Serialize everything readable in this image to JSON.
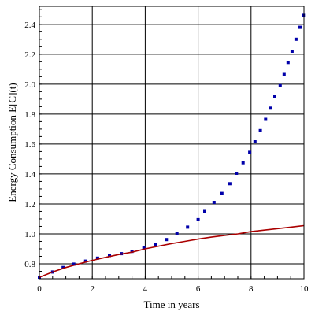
{
  "chart_data": {
    "type": "line",
    "xlabel": "Time in years",
    "ylabel": "Energy Consumption E[C](t)",
    "xlim": [
      0,
      10
    ],
    "ylim": [
      0.7,
      2.52
    ],
    "grid": true,
    "x_ticks": [
      0,
      2,
      4,
      6,
      8,
      10
    ],
    "y_ticks": [
      0.8,
      1.0,
      1.2,
      1.4,
      1.6,
      1.8,
      2.0,
      2.2,
      2.4
    ],
    "x_tick_labels": [
      "0",
      "2",
      "4",
      "6",
      "8",
      "10"
    ],
    "y_tick_labels": [
      "0.8",
      "1.0",
      "1.2",
      "1.4",
      "1.6",
      "1.8",
      "2.0",
      "2.2",
      "2.4"
    ],
    "series": [
      {
        "style": "dotted",
        "color": "#0000aa",
        "points": [
          [
            0.0,
            0.71
          ],
          [
            0.5,
            0.745
          ],
          [
            0.9,
            0.775
          ],
          [
            1.3,
            0.798
          ],
          [
            1.75,
            0.818
          ],
          [
            2.2,
            0.838
          ],
          [
            2.65,
            0.855
          ],
          [
            3.1,
            0.868
          ],
          [
            3.5,
            0.883
          ],
          [
            3.95,
            0.905
          ],
          [
            4.4,
            0.93
          ],
          [
            4.8,
            0.962
          ],
          [
            5.2,
            1.0
          ],
          [
            5.6,
            1.045
          ],
          [
            6.0,
            1.095
          ],
          [
            6.25,
            1.15
          ],
          [
            6.6,
            1.21
          ],
          [
            6.9,
            1.27
          ],
          [
            7.2,
            1.335
          ],
          [
            7.45,
            1.405
          ],
          [
            7.7,
            1.475
          ],
          [
            7.95,
            1.545
          ],
          [
            8.15,
            1.615
          ],
          [
            8.35,
            1.69
          ],
          [
            8.55,
            1.765
          ],
          [
            8.75,
            1.84
          ],
          [
            8.9,
            1.915
          ],
          [
            9.1,
            1.99
          ],
          [
            9.25,
            2.065
          ],
          [
            9.4,
            2.145
          ],
          [
            9.55,
            2.22
          ],
          [
            9.7,
            2.3
          ],
          [
            9.85,
            2.38
          ],
          [
            9.98,
            2.46
          ]
        ]
      },
      {
        "style": "solid",
        "color": "#aa0000",
        "points": [
          [
            0.0,
            0.71
          ],
          [
            0.5,
            0.745
          ],
          [
            1.0,
            0.775
          ],
          [
            1.5,
            0.8
          ],
          [
            2.0,
            0.823
          ],
          [
            2.5,
            0.843
          ],
          [
            3.0,
            0.862
          ],
          [
            3.5,
            0.878
          ],
          [
            4.0,
            0.9
          ],
          [
            4.5,
            0.918
          ],
          [
            5.0,
            0.935
          ],
          [
            5.5,
            0.95
          ],
          [
            6.0,
            0.965
          ],
          [
            6.5,
            0.978
          ],
          [
            7.0,
            0.99
          ],
          [
            7.5,
            1.0
          ],
          [
            8.0,
            1.015
          ],
          [
            8.5,
            1.025
          ],
          [
            9.0,
            1.035
          ],
          [
            9.5,
            1.045
          ],
          [
            10.0,
            1.055
          ]
        ]
      }
    ]
  }
}
